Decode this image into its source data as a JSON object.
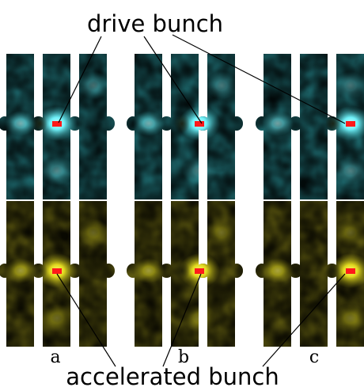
{
  "labels": {
    "top": "drive bunch",
    "bottom": "accelerated bunch",
    "panels": [
      "a",
      "b",
      "c"
    ]
  },
  "colors": {
    "teal": "#2e8f95",
    "olive": "#6f6a10",
    "bright_cyan": "#8ff8ff",
    "bright_yellow": "#f2eb2a",
    "bunch": "#ff1a1a",
    "leader": "#000000"
  },
  "rows": [
    {
      "name": "drive-bunch-row",
      "field": "cyan"
    },
    {
      "name": "accelerated-bunch-row",
      "field": "yellow"
    }
  ]
}
